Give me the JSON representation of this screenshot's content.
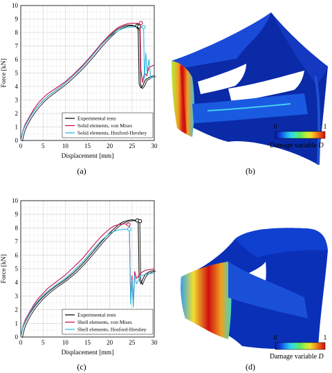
{
  "captions": [
    "(a)",
    "(b)",
    "(c)",
    "(d)"
  ],
  "damage_legend": {
    "min_label": "0",
    "max_label": "1",
    "label": "Damage variable",
    "symbol": "D",
    "colors": [
      "#0a1a9a",
      "#1040e0",
      "#1a8ff0",
      "#2fd0f0",
      "#40e8b0",
      "#60e860",
      "#b0f040",
      "#f0e030",
      "#f0a020",
      "#e85010",
      "#d01010"
    ]
  },
  "chart_data": [
    {
      "type": "line",
      "panel": "(a)",
      "xlabel": "Displacement [mm]",
      "ylabel": "Force [kN]",
      "xlim": [
        0,
        30
      ],
      "ylim": [
        0,
        10
      ],
      "xticks": [
        0,
        5,
        10,
        15,
        20,
        25,
        30
      ],
      "yticks": [
        0,
        1,
        2,
        3,
        4,
        5,
        6,
        7,
        8,
        9,
        10
      ],
      "grid": true,
      "legend_position": "bottom-right",
      "series": [
        {
          "name": "Experimental tests",
          "color": "#111111",
          "x": [
            0,
            0.5,
            1,
            2,
            3,
            4,
            5,
            6,
            8,
            10,
            12,
            14,
            16,
            18,
            20,
            21,
            22,
            23,
            24,
            25,
            25.5,
            26,
            26.4,
            26.6,
            27,
            27.5,
            28,
            29,
            30
          ],
          "y": [
            0,
            0.7,
            1.1,
            1.7,
            2.2,
            2.6,
            2.95,
            3.25,
            3.75,
            4.25,
            4.85,
            5.5,
            6.25,
            7.05,
            7.75,
            8.05,
            8.3,
            8.45,
            8.55,
            8.55,
            8.5,
            8.4,
            8.2,
            4.2,
            3.9,
            4.1,
            4.5,
            4.7,
            4.8
          ]
        },
        {
          "name": "Solid elements, von Mises",
          "color": "#c8104a",
          "x": [
            0,
            0.5,
            1,
            2,
            3,
            4,
            5,
            6,
            8,
            10,
            12,
            14,
            16,
            18,
            20,
            21,
            22,
            23,
            24,
            25,
            26,
            26.8,
            27,
            27.4,
            27.8,
            28.3,
            28.8,
            30
          ],
          "y": [
            0,
            0.75,
            1.2,
            1.8,
            2.35,
            2.8,
            3.15,
            3.45,
            3.9,
            4.35,
            4.95,
            5.6,
            6.35,
            7.15,
            7.85,
            8.15,
            8.4,
            8.55,
            8.65,
            8.7,
            8.68,
            8.65,
            5.2,
            4.3,
            5.0,
            4.8,
            5.4,
            5.6
          ]
        },
        {
          "name": "Solid elements, Hosford-Hershey",
          "color": "#30b8e0",
          "x": [
            0,
            0.5,
            1,
            2,
            3,
            4,
            5,
            6,
            8,
            10,
            12,
            14,
            16,
            18,
            20,
            21,
            22,
            23,
            24,
            25,
            26,
            27,
            27.6,
            27.8,
            28.1,
            28.4,
            28.8,
            29.2,
            30
          ],
          "y": [
            0,
            0.7,
            1.1,
            1.7,
            2.2,
            2.6,
            2.95,
            3.25,
            3.75,
            4.25,
            4.85,
            5.5,
            6.25,
            7.05,
            7.7,
            7.95,
            8.15,
            8.3,
            8.38,
            8.4,
            8.42,
            8.4,
            8.3,
            4.6,
            6.5,
            5.0,
            6.0,
            4.6,
            4.7
          ]
        }
      ],
      "failure_markers": [
        {
          "series": "Experimental tests",
          "x": 26.2,
          "y": 8.5
        },
        {
          "series": "Experimental tests",
          "x": 26.6,
          "y": 8.45
        },
        {
          "series": "Solid elements, von Mises",
          "x": 27.0,
          "y": 8.7
        },
        {
          "series": "Solid elements, Hosford-Hershey",
          "x": 27.6,
          "y": 8.4
        }
      ]
    },
    {
      "type": "line",
      "panel": "(c)",
      "xlabel": "Displacement [mm]",
      "ylabel": "Force [kN]",
      "xlim": [
        0,
        30
      ],
      "ylim": [
        0,
        10
      ],
      "xticks": [
        0,
        5,
        10,
        15,
        20,
        25,
        30
      ],
      "yticks": [
        0,
        1,
        2,
        3,
        4,
        5,
        6,
        7,
        8,
        9,
        10
      ],
      "grid": true,
      "legend_position": "bottom-right",
      "series": [
        {
          "name": "Experimental tests",
          "color": "#111111",
          "x": [
            0,
            0.5,
            1,
            2,
            3,
            4,
            5,
            6,
            8,
            10,
            12,
            14,
            16,
            18,
            20,
            21,
            22,
            23,
            24,
            25,
            26,
            26.4,
            26.6,
            27,
            27.5,
            28,
            29,
            30
          ],
          "y": [
            0,
            0.7,
            1.1,
            1.7,
            2.2,
            2.6,
            2.95,
            3.25,
            3.75,
            4.2,
            4.75,
            5.4,
            6.15,
            6.95,
            7.65,
            7.95,
            8.25,
            8.45,
            8.55,
            8.6,
            8.55,
            8.5,
            4.3,
            3.9,
            4.3,
            4.6,
            4.8,
            4.9
          ]
        },
        {
          "name": "Shell elements, von Mises",
          "color": "#c8104a",
          "x": [
            0,
            0.5,
            1,
            2,
            3,
            4,
            5,
            6,
            8,
            10,
            12,
            14,
            16,
            18,
            20,
            21,
            22,
            23,
            24,
            24.4,
            24.7,
            25.0,
            25.3,
            25.6,
            26,
            27,
            28,
            30
          ],
          "y": [
            0,
            0.8,
            1.25,
            1.85,
            2.4,
            2.85,
            3.2,
            3.55,
            4.05,
            4.55,
            5.15,
            5.8,
            6.6,
            7.35,
            7.95,
            8.15,
            8.25,
            8.3,
            8.28,
            8.2,
            2.8,
            4.5,
            2.5,
            4.8,
            4.3,
            4.7,
            4.9,
            5.0
          ]
        },
        {
          "name": "Shell elements, Hosford-Hershey",
          "color": "#30b8e0",
          "x": [
            0,
            0.5,
            1,
            2,
            3,
            4,
            5,
            6,
            8,
            10,
            12,
            14,
            16,
            18,
            20,
            21,
            22,
            23,
            24,
            24.4,
            24.7,
            25.0,
            25.3,
            25.6,
            26,
            27,
            28,
            30
          ],
          "y": [
            0,
            0.75,
            1.15,
            1.75,
            2.3,
            2.7,
            3.05,
            3.35,
            3.85,
            4.3,
            4.9,
            5.55,
            6.3,
            7.05,
            7.6,
            7.75,
            7.85,
            7.9,
            7.92,
            7.9,
            2.4,
            4.2,
            2.2,
            4.5,
            3.9,
            4.5,
            4.6,
            4.7
          ]
        }
      ],
      "failure_markers": [
        {
          "series": "Experimental tests",
          "x": 26.2,
          "y": 8.55
        },
        {
          "series": "Experimental tests",
          "x": 26.8,
          "y": 8.5
        },
        {
          "series": "Shell elements, von Mises",
          "x": 24.2,
          "y": 8.25
        },
        {
          "series": "Shell elements, Hosford-Hershey",
          "x": 24.4,
          "y": 7.9
        }
      ]
    }
  ]
}
